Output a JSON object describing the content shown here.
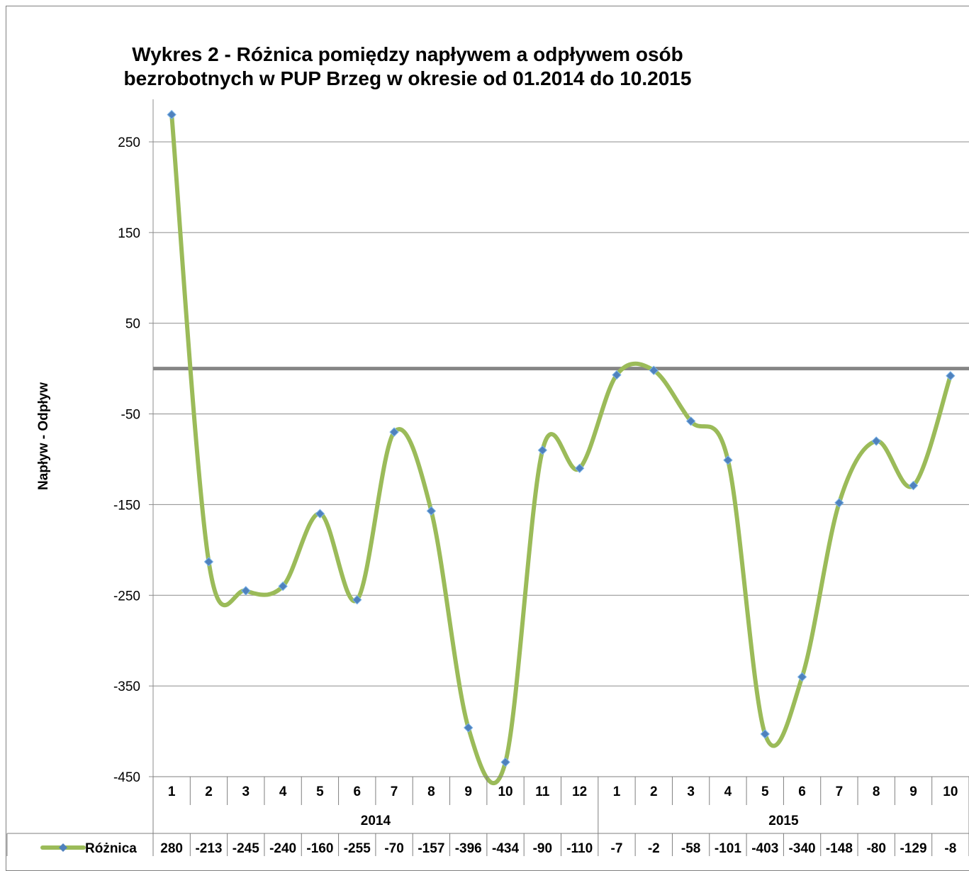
{
  "chart_data": {
    "type": "line",
    "title": [
      "Wykres 2 - Różnica pomiędzy napływem a odpływem osób",
      "bezrobotnych w PUP Brzeg w okresie od 01.2014 do 10.2015"
    ],
    "ylabel": "Napływ - Odpływ",
    "ylim": [
      -450,
      280
    ],
    "yticks": [
      250,
      150,
      50,
      -50,
      -150,
      -250,
      -350,
      -450
    ],
    "grid": true,
    "smooth": true,
    "x": [
      "1",
      "2",
      "3",
      "4",
      "5",
      "6",
      "7",
      "8",
      "9",
      "10",
      "11",
      "12",
      "1",
      "2",
      "3",
      "4",
      "5",
      "6",
      "7",
      "8",
      "9",
      "10"
    ],
    "groups": [
      {
        "label": "2014",
        "count": 12
      },
      {
        "label": "2015",
        "count": 10
      }
    ],
    "series": [
      {
        "name": "Różnica",
        "color": "#9bbb59",
        "marker_color": "#4f81bd",
        "values": [
          280,
          -213,
          -245,
          -240,
          -160,
          -255,
          -70,
          -157,
          -396,
          -434,
          -90,
          -110,
          -7,
          -2,
          -58,
          -101,
          -403,
          -340,
          -148,
          -80,
          -129,
          -8
        ]
      }
    ],
    "data_table": true
  }
}
